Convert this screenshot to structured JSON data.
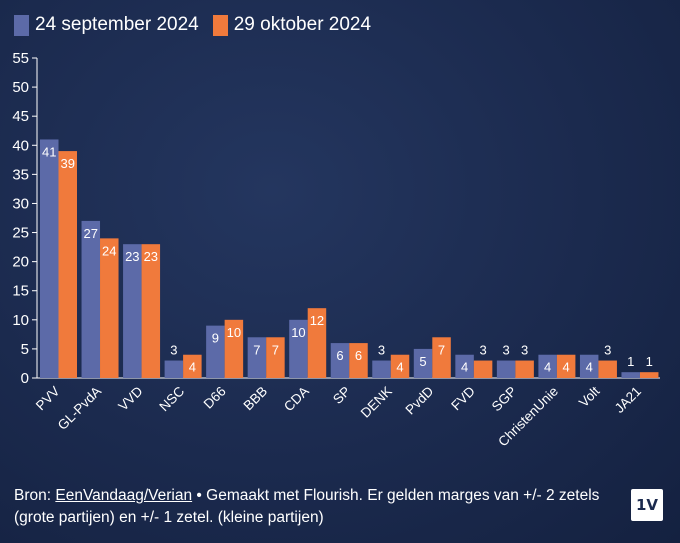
{
  "chart_data": {
    "type": "bar",
    "categories": [
      "PVV",
      "GL-PvdA",
      "VVD",
      "NSC",
      "D66",
      "BBB",
      "CDA",
      "SP",
      "DENK",
      "PvdD",
      "FVD",
      "SGP",
      "ChristenUnie",
      "Volt",
      "JA21"
    ],
    "series": [
      {
        "name": "24 september 2024",
        "color": "#5c6aa8",
        "values": [
          41,
          27,
          23,
          3,
          9,
          7,
          10,
          6,
          3,
          5,
          4,
          3,
          4,
          4,
          1
        ]
      },
      {
        "name": "29 oktober 2024",
        "color": "#f07a3c",
        "values": [
          39,
          24,
          23,
          4,
          10,
          7,
          12,
          6,
          4,
          7,
          3,
          3,
          4,
          3,
          1
        ]
      }
    ],
    "yticks": [
      0,
      5,
      10,
      15,
      20,
      25,
      30,
      35,
      40,
      45,
      50,
      55
    ],
    "ylim": [
      0,
      55
    ],
    "grid": false,
    "legend": "top-left"
  },
  "footer": {
    "prefix": "Bron: ",
    "link": "EenVandaag/Verian",
    "rest": " • Gemaakt met Flourish. Er gelden marges van +/- 2 zetels (grote partijen) en +/- 1 zetel. (kleine partijen)"
  },
  "logo": "1V"
}
